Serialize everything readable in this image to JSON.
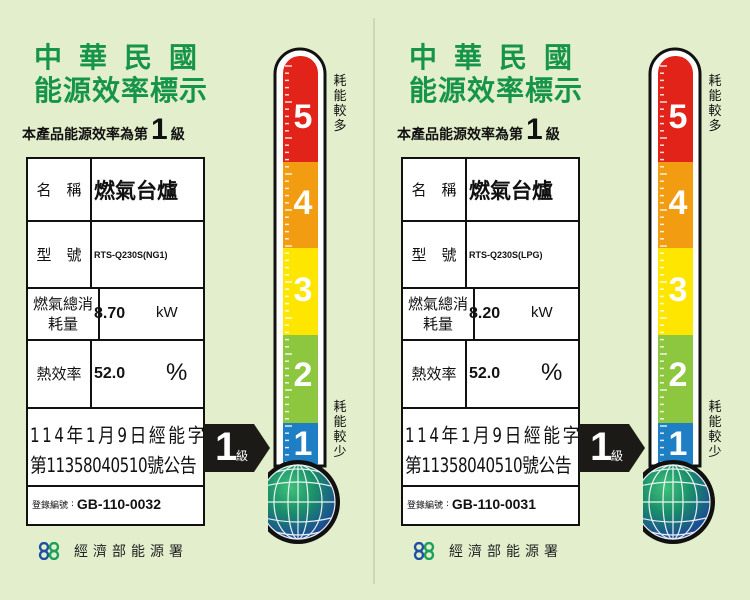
{
  "labels": [
    {
      "title_line1": "中華民國",
      "title_line2": "能源效率標示",
      "grade_prefix": "本產品能源效率為第",
      "grade": "1",
      "grade_suffix": "級",
      "name_label": "名　稱",
      "name_value": "燃氣台爐",
      "model_label": "型　號",
      "model_value": "RTS-Q230S(NG1)",
      "consumption_label": "燃氣總消耗量",
      "consumption_value": "8.70",
      "consumption_unit": "kW",
      "efficiency_label": "熱效率",
      "efficiency_value": "52.0",
      "efficiency_unit": "%",
      "announcement_line1": "114年1月9日經能字",
      "announcement_line2": "第11358040510號公告",
      "registration_label": "登錄編號",
      "registration_value": "GB-110-0032",
      "arrow_grade": "1",
      "arrow_unit": "級",
      "scale": [
        "5",
        "4",
        "3",
        "2",
        "1"
      ],
      "scale_top_text": "耗能較多",
      "scale_bottom_text": "耗能較少",
      "agency": "經濟部能源署"
    },
    {
      "title_line1": "中華民國",
      "title_line2": "能源效率標示",
      "grade_prefix": "本產品能源效率為第",
      "grade": "1",
      "grade_suffix": "級",
      "name_label": "名　稱",
      "name_value": "燃氣台爐",
      "model_label": "型　號",
      "model_value": "RTS-Q230S(LPG)",
      "consumption_label": "燃氣總消耗量",
      "consumption_value": "8.20",
      "consumption_unit": "kW",
      "efficiency_label": "熱效率",
      "efficiency_value": "52.0",
      "efficiency_unit": "%",
      "announcement_line1": "114年1月9日經能字",
      "announcement_line2": "第11358040510號公告",
      "registration_label": "登錄編號",
      "registration_value": "GB-110-0031",
      "arrow_grade": "1",
      "arrow_unit": "級",
      "scale": [
        "5",
        "4",
        "3",
        "2",
        "1"
      ],
      "scale_top_text": "耗能較多",
      "scale_bottom_text": "耗能較少",
      "agency": "經濟部能源署"
    }
  ],
  "colors": {
    "background": "#e3efcc",
    "title_green": "#169447",
    "grade5": "#e2231a",
    "grade4": "#f29c12",
    "grade3": "#ffe600",
    "grade2": "#8dc63f",
    "grade1": "#1f7fc4"
  }
}
